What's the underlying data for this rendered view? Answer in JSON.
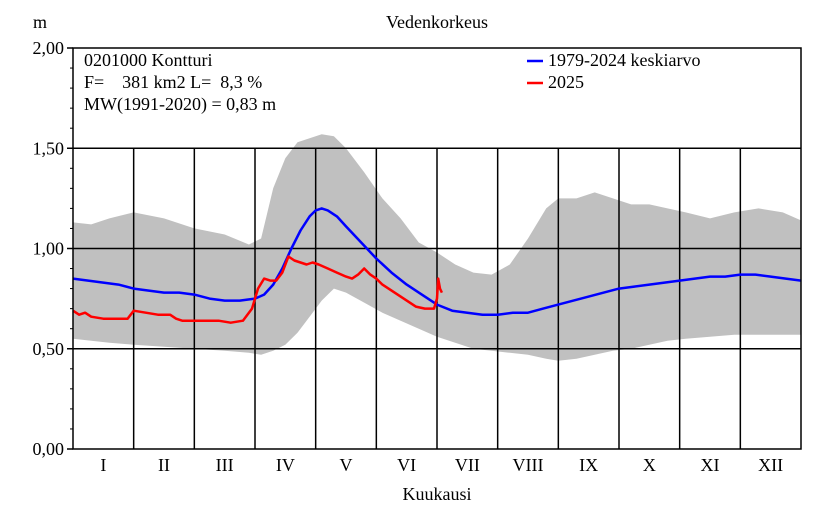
{
  "chart_data": {
    "type": "line",
    "title": "Vedenkorkeus",
    "ylabel": "m",
    "xlabel": "Kuukausi",
    "ylim": [
      0,
      2
    ],
    "yticks": [
      "0,00",
      "0,50",
      "1,00",
      "1,50",
      "2,00"
    ],
    "ytick_values": [
      0,
      0.5,
      1.0,
      1.5,
      2.0
    ],
    "months": [
      "I",
      "II",
      "III",
      "IV",
      "V",
      "VI",
      "VII",
      "VIII",
      "IX",
      "X",
      "XI",
      "XII"
    ],
    "grid": true,
    "info": {
      "station": "0201000 Kontturi",
      "area": "F=    381 km2 L=  8,3 %",
      "mw": "MW(1991-2020) = 0,83 m"
    },
    "legend": [
      {
        "label": "1979-2024 keskiarvo",
        "color": "#0000ff"
      },
      {
        "label": "2025",
        "color": "#ff0000"
      }
    ],
    "colors": {
      "mean": "#0000ff",
      "current": "#ff0000",
      "band": "#c0c0c0"
    },
    "band": {
      "x": [
        0,
        0.3,
        0.6,
        1.0,
        1.5,
        2.0,
        2.5,
        2.9,
        3.1,
        3.3,
        3.5,
        3.7,
        3.9,
        4.1,
        4.3,
        4.5,
        4.8,
        5.1,
        5.4,
        5.7,
        6.0,
        6.3,
        6.6,
        6.9,
        7.2,
        7.5,
        7.8,
        8.0,
        8.3,
        8.6,
        8.9,
        9.2,
        9.5,
        9.8,
        10.1,
        10.5,
        10.9,
        11.3,
        11.7,
        12.0
      ],
      "upper": [
        1.13,
        1.12,
        1.15,
        1.18,
        1.15,
        1.1,
        1.07,
        1.02,
        1.05,
        1.3,
        1.45,
        1.53,
        1.55,
        1.57,
        1.56,
        1.5,
        1.38,
        1.25,
        1.15,
        1.03,
        0.98,
        0.92,
        0.88,
        0.87,
        0.92,
        1.05,
        1.2,
        1.25,
        1.25,
        1.28,
        1.25,
        1.22,
        1.22,
        1.2,
        1.18,
        1.15,
        1.18,
        1.2,
        1.18,
        1.14
      ],
      "lower": [
        0.55,
        0.54,
        0.53,
        0.52,
        0.51,
        0.5,
        0.49,
        0.48,
        0.47,
        0.49,
        0.52,
        0.58,
        0.66,
        0.74,
        0.8,
        0.78,
        0.73,
        0.68,
        0.64,
        0.6,
        0.56,
        0.53,
        0.5,
        0.49,
        0.48,
        0.47,
        0.45,
        0.44,
        0.45,
        0.47,
        0.49,
        0.5,
        0.52,
        0.54,
        0.55,
        0.56,
        0.57,
        0.57,
        0.57,
        0.57
      ]
    },
    "series": [
      {
        "name": "1979-2024 keskiarvo",
        "x": [
          0,
          0.25,
          0.5,
          0.75,
          1.0,
          1.25,
          1.5,
          1.75,
          2.0,
          2.25,
          2.5,
          2.75,
          3.0,
          3.15,
          3.3,
          3.45,
          3.6,
          3.75,
          3.9,
          4.0,
          4.1,
          4.2,
          4.35,
          4.5,
          4.75,
          5.0,
          5.25,
          5.5,
          5.75,
          6.0,
          6.25,
          6.5,
          6.75,
          7.0,
          7.25,
          7.5,
          7.75,
          8.0,
          8.25,
          8.5,
          8.75,
          9.0,
          9.25,
          9.5,
          9.75,
          10.0,
          10.25,
          10.5,
          10.75,
          11.0,
          11.25,
          11.5,
          11.75,
          12.0
        ],
        "values": [
          0.85,
          0.84,
          0.83,
          0.82,
          0.8,
          0.79,
          0.78,
          0.78,
          0.77,
          0.75,
          0.74,
          0.74,
          0.75,
          0.77,
          0.82,
          0.9,
          1.0,
          1.09,
          1.16,
          1.19,
          1.2,
          1.19,
          1.16,
          1.11,
          1.03,
          0.95,
          0.88,
          0.82,
          0.77,
          0.72,
          0.69,
          0.68,
          0.67,
          0.67,
          0.68,
          0.68,
          0.7,
          0.72,
          0.74,
          0.76,
          0.78,
          0.8,
          0.81,
          0.82,
          0.83,
          0.84,
          0.85,
          0.86,
          0.86,
          0.87,
          0.87,
          0.86,
          0.85,
          0.84
        ]
      },
      {
        "name": "2025",
        "x": [
          0,
          0.1,
          0.2,
          0.3,
          0.5,
          0.7,
          0.9,
          1.0,
          1.2,
          1.4,
          1.6,
          1.7,
          1.8,
          2.0,
          2.2,
          2.4,
          2.6,
          2.8,
          2.95,
          3.05,
          3.15,
          3.25,
          3.35,
          3.45,
          3.55,
          3.65,
          3.75,
          3.85,
          3.95,
          4.05,
          4.2,
          4.35,
          4.5,
          4.6,
          4.7,
          4.8,
          4.9,
          5.0,
          5.1,
          5.2,
          5.35,
          5.5,
          5.65,
          5.8,
          5.95,
          6.0,
          6.02,
          6.05,
          6.08
        ],
        "values": [
          0.69,
          0.67,
          0.68,
          0.66,
          0.65,
          0.65,
          0.65,
          0.69,
          0.68,
          0.67,
          0.67,
          0.65,
          0.64,
          0.64,
          0.64,
          0.64,
          0.63,
          0.64,
          0.7,
          0.8,
          0.85,
          0.84,
          0.84,
          0.88,
          0.96,
          0.94,
          0.93,
          0.92,
          0.93,
          0.92,
          0.9,
          0.88,
          0.86,
          0.85,
          0.87,
          0.9,
          0.87,
          0.85,
          0.82,
          0.8,
          0.77,
          0.74,
          0.71,
          0.7,
          0.7,
          0.75,
          0.85,
          0.8,
          0.78
        ]
      }
    ]
  }
}
